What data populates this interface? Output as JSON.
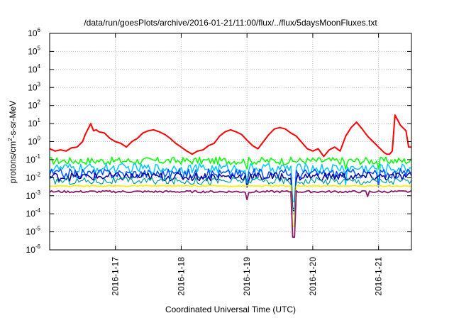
{
  "chart_data": {
    "type": "line",
    "title": "/data/run/goesPlots/archive/2016-01-21/11:00/flux/../flux/5daysMoonFluxes.txt",
    "xlabel": "Coordinated Universal Time (UTC)",
    "ylabel": "protons/cm2-s-sr-MeV",
    "ylabel_parts": {
      "pre": "protons/cm",
      "sup": "2",
      "post": "-s-sr-MeV"
    },
    "x_range": [
      "2016-01-16T00:00",
      "2016-01-21T12:00"
    ],
    "x_ticks": [
      "2016-1-17",
      "2016-1-18",
      "2016-1-19",
      "2016-1-20",
      "2016-1-21"
    ],
    "ylim": [
      1e-06,
      1000000.0
    ],
    "y_scale": "log",
    "y_ticks": [
      {
        "base": "10",
        "exp": "-6"
      },
      {
        "base": "10",
        "exp": "-5"
      },
      {
        "base": "10",
        "exp": "-4"
      },
      {
        "base": "10",
        "exp": "-3"
      },
      {
        "base": "10",
        "exp": "-2"
      },
      {
        "base": "10",
        "exp": "-1"
      },
      {
        "base": "10",
        "exp": "0"
      },
      {
        "base": "10",
        "exp": "1"
      },
      {
        "base": "10",
        "exp": "2"
      },
      {
        "base": "10",
        "exp": "3"
      },
      {
        "base": "10",
        "exp": "4"
      },
      {
        "base": "10",
        "exp": "5"
      },
      {
        "base": "10",
        "exp": "6"
      }
    ],
    "grid": true,
    "series": [
      {
        "color": "#ff0000",
        "width": 2,
        "x": [
          "2016-01-16T00:00",
          "2016-01-16T02:00",
          "2016-01-16T04:00",
          "2016-01-16T06:00",
          "2016-01-16T08:00",
          "2016-01-16T10:00",
          "2016-01-16T12:00",
          "2016-01-16T13:00",
          "2016-01-16T14:00",
          "2016-01-16T15:00",
          "2016-01-16T16:00",
          "2016-01-16T17:00",
          "2016-01-16T18:00",
          "2016-01-16T20:00",
          "2016-01-16T22:00",
          "2016-01-17T00:00",
          "2016-01-17T02:00",
          "2016-01-17T04:00",
          "2016-01-17T06:00",
          "2016-01-17T08:00",
          "2016-01-17T10:00",
          "2016-01-17T12:00",
          "2016-01-17T14:00",
          "2016-01-17T16:00",
          "2016-01-17T18:00",
          "2016-01-17T20:00",
          "2016-01-17T22:00",
          "2016-01-18T00:00",
          "2016-01-18T02:00",
          "2016-01-18T04:00",
          "2016-01-18T06:00",
          "2016-01-18T08:00",
          "2016-01-18T10:00",
          "2016-01-18T12:00",
          "2016-01-18T14:00",
          "2016-01-18T16:00",
          "2016-01-18T18:00",
          "2016-01-18T20:00",
          "2016-01-18T22:00",
          "2016-01-19T00:00",
          "2016-01-19T02:00",
          "2016-01-19T04:00",
          "2016-01-19T06:00",
          "2016-01-19T08:00",
          "2016-01-19T10:00",
          "2016-01-19T12:00",
          "2016-01-19T14:00",
          "2016-01-19T16:00",
          "2016-01-19T18:00",
          "2016-01-19T20:00",
          "2016-01-19T22:00",
          "2016-01-20T00:00",
          "2016-01-20T02:00",
          "2016-01-20T04:00",
          "2016-01-20T06:00",
          "2016-01-20T08:00",
          "2016-01-20T10:00",
          "2016-01-20T12:00",
          "2016-01-20T14:00",
          "2016-01-20T16:00",
          "2016-01-20T18:00",
          "2016-01-20T20:00",
          "2016-01-20T22:00",
          "2016-01-21T00:00",
          "2016-01-21T02:00",
          "2016-01-21T03:00",
          "2016-01-21T04:00",
          "2016-01-21T05:00",
          "2016-01-21T06:00",
          "2016-01-21T08:00",
          "2016-01-21T10:00",
          "2016-01-21T11:00",
          "2016-01-21T12:00"
        ],
        "values": [
          0.4,
          0.3,
          0.35,
          0.3,
          0.45,
          0.5,
          1.0,
          2.5,
          5.0,
          10,
          4.0,
          4.5,
          3.5,
          3.0,
          1.5,
          1.0,
          0.8,
          0.5,
          1.0,
          1.5,
          3.0,
          4.0,
          4.5,
          3.5,
          2.5,
          1.5,
          0.8,
          0.5,
          0.3,
          0.2,
          0.3,
          0.35,
          0.6,
          0.8,
          2.0,
          3.5,
          4.5,
          3.5,
          2.5,
          1.2,
          0.6,
          0.4,
          1.0,
          2.5,
          5.0,
          6.0,
          5.0,
          3.0,
          2.0,
          0.9,
          0.4,
          0.3,
          0.4,
          0.15,
          0.35,
          0.5,
          0.3,
          2.0,
          6.0,
          12,
          5.0,
          2.0,
          1.0,
          0.5,
          0.25,
          0.2,
          0.2,
          0.3,
          30,
          8.0,
          4.0,
          0.5,
          0.5
        ]
      },
      {
        "color": "#00ff00",
        "width": 1.5,
        "base": 0.09,
        "jitter": 0.7,
        "dips": [
          [
            "2016-01-19T00:00",
            0.03
          ],
          [
            "2016-01-19T17:00",
            0.08
          ],
          [
            "2016-01-20T12:00",
            0.03
          ],
          [
            "2016-01-21T00:00",
            0.03
          ]
        ]
      },
      {
        "color": "#00c8ff",
        "width": 1.5,
        "base": 0.035,
        "jitter": 0.9,
        "dips": [
          [
            "2016-01-19T00:00",
            0.004
          ],
          [
            "2016-01-19T17:00",
            0.0005
          ],
          [
            "2016-01-20T12:00",
            0.004
          ],
          [
            "2016-01-21T00:00",
            0.003
          ]
        ]
      },
      {
        "color": "#0050ff",
        "width": 1.5,
        "base": 0.018,
        "jitter": 0.9,
        "dips": [
          [
            "2016-01-19T00:00",
            0.003
          ],
          [
            "2016-01-19T17:00",
            0.0002
          ],
          [
            "2016-01-21T00:00",
            0.003
          ]
        ]
      },
      {
        "color": "#0000a0",
        "width": 1.5,
        "base": 0.012,
        "jitter": 0.8,
        "dips": [
          [
            "2016-01-19T00:00",
            0.003
          ],
          [
            "2016-01-19T17:00",
            0.00015
          ]
        ]
      },
      {
        "color": "#00a0a0",
        "width": 1.2,
        "base": 0.007,
        "jitter": 0.7,
        "dips": [
          [
            "2016-01-19T17:00",
            0.0001
          ]
        ]
      },
      {
        "color": "#ffee00",
        "width": 1.8,
        "base": 0.0035,
        "jitter": 0.1,
        "dips": [
          [
            "2016-01-19T17:00",
            2e-05
          ]
        ]
      },
      {
        "color": "#8b1a6b",
        "width": 1.8,
        "base": 0.0017,
        "jitter": 0.2,
        "dips": [
          [
            "2016-01-19T00:00",
            0.0006
          ],
          [
            "2016-01-19T17:00",
            5e-06
          ],
          [
            "2016-01-20T20:00",
            0.0009
          ]
        ]
      }
    ]
  }
}
